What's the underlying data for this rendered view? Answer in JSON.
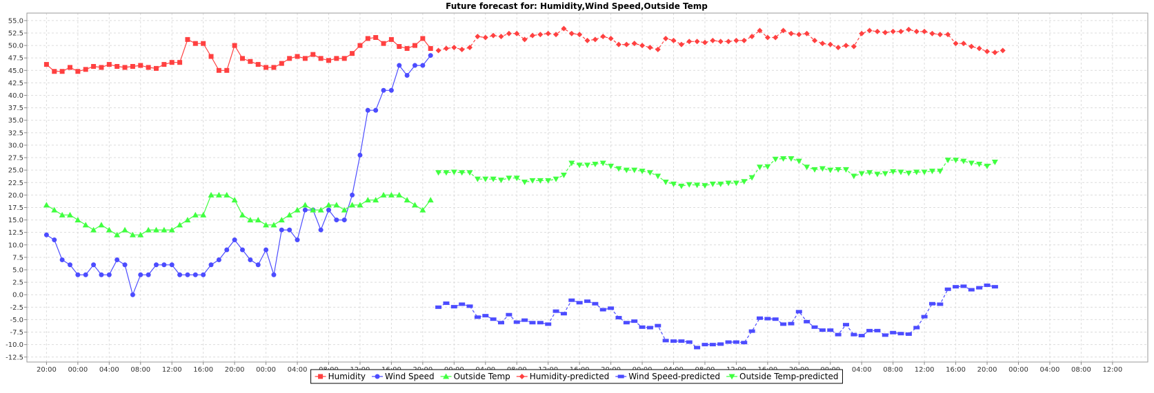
{
  "chart_data": {
    "type": "line",
    "title": "Future forecast for: Humidity,Wind Speed,Outside Temp",
    "xlabel": "",
    "ylabel": "",
    "ylim": [
      -13.5,
      56.5
    ],
    "y_ticks": [
      "55.0",
      "52.5",
      "50.0",
      "47.5",
      "45.0",
      "42.5",
      "40.0",
      "37.5",
      "35.0",
      "32.5",
      "30.0",
      "27.5",
      "25.0",
      "22.5",
      "20.0",
      "17.5",
      "15.0",
      "12.5",
      "10.0",
      "7.5",
      "5.0",
      "2.5",
      "0.0",
      "-2.5",
      "-5.0",
      "-7.5",
      "-10.0",
      "-12.5"
    ],
    "x_ticks": [
      "20:00",
      "00:00",
      "04:00",
      "08:00",
      "12:00",
      "16:00",
      "20:00",
      "00:00",
      "04:00",
      "08:00",
      "12:00",
      "16:00",
      "20:00",
      "00:00",
      "04:00",
      "08:00",
      "12:00",
      "16:00",
      "20:00",
      "00:00",
      "04:00",
      "08:00",
      "12:00",
      "16:00",
      "20:00",
      "00:00",
      "04:00",
      "08:00",
      "12:00",
      "16:00",
      "20:00",
      "00:00",
      "04:00",
      "08:00",
      "12:00"
    ],
    "x_range_hours": [
      -2.5,
      140.5
    ],
    "grid": true,
    "legend_position": "bottom",
    "series": [
      {
        "name": "Humidity",
        "color": "#ff4040",
        "marker": "square",
        "dashed": false,
        "x_start": 0,
        "values": [
          46.2,
          44.8,
          44.8,
          45.6,
          44.8,
          45.2,
          45.8,
          45.6,
          46.2,
          45.8,
          45.6,
          45.8,
          46,
          45.6,
          45.4,
          46.2,
          46.6,
          46.6,
          51.2,
          50.4,
          50.4,
          47.8,
          45,
          45,
          50,
          47.4,
          46.8,
          46.2,
          45.6,
          45.6,
          46.4,
          47.4,
          47.8,
          47.4,
          48.2,
          47.4,
          47,
          47.4,
          47.4,
          48.4,
          50,
          51.4,
          51.6,
          50.4,
          51.2,
          49.8,
          49.4,
          50,
          51.4,
          49.4
        ]
      },
      {
        "name": "Wind Speed",
        "color": "#4c4cff",
        "marker": "circle",
        "dashed": false,
        "x_start": 0,
        "values": [
          12,
          11,
          7,
          6,
          4,
          4,
          6,
          4,
          4,
          7,
          6,
          0,
          4,
          4,
          6,
          6,
          6,
          4,
          4,
          4,
          4,
          6,
          7,
          9,
          11,
          9,
          7,
          6,
          9,
          4,
          13,
          13,
          11,
          17,
          17,
          13,
          17,
          15,
          15,
          20,
          28,
          37,
          37,
          41,
          41,
          46,
          44,
          46,
          46,
          48
        ]
      },
      {
        "name": "Outside Temp",
        "color": "#40ff40",
        "marker": "triangle-up",
        "dashed": false,
        "x_start": 0,
        "values": [
          18,
          17,
          16,
          16,
          15,
          14,
          13,
          14,
          13,
          12,
          13,
          12,
          12,
          13,
          13,
          13,
          13,
          14,
          15,
          16,
          16,
          20,
          20,
          20,
          19,
          16,
          15,
          15,
          14,
          14,
          15,
          16,
          17,
          18,
          17,
          17,
          18,
          18,
          17,
          18,
          18,
          19,
          19,
          20,
          20,
          20,
          19,
          18,
          17,
          19
        ]
      },
      {
        "name": "Humidity-predicted",
        "color": "#ff4040",
        "marker": "diamond",
        "dashed": true,
        "x_start": 50,
        "values": [
          49,
          49.4,
          49.6,
          49.2,
          49.6,
          51.8,
          51.6,
          52,
          51.8,
          52.4,
          52.4,
          51.2,
          52,
          52.2,
          52.4,
          52.2,
          53.4,
          52.4,
          52.2,
          51,
          51.2,
          51.8,
          51.4,
          50.2,
          50.2,
          50.4,
          50,
          49.6,
          49.2,
          51.4,
          51,
          50.2,
          50.8,
          50.8,
          50.6,
          51,
          50.8,
          50.8,
          51,
          51,
          51.8,
          53,
          51.6,
          51.6,
          53,
          52.4,
          52.2,
          52.4,
          51,
          50.4,
          50.2,
          49.6,
          50,
          49.8,
          52.4,
          53,
          52.8,
          52.6,
          52.8,
          52.8,
          53.2,
          52.8,
          52.8,
          52.4,
          52.2,
          52.2,
          50.4,
          50.4,
          49.8,
          49.4,
          48.8,
          48.6,
          49
        ]
      },
      {
        "name": "Wind Speed-predicted",
        "color": "#4c4cff",
        "marker": "rect-h",
        "dashed": true,
        "x_start": 50,
        "values": [
          -2.5,
          -1.7,
          -2.4,
          -1.9,
          -2.3,
          -4.5,
          -4.2,
          -4.9,
          -5.6,
          -4,
          -5.5,
          -5.1,
          -5.6,
          -5.6,
          -5.9,
          -3.3,
          -3.8,
          -1.1,
          -1.6,
          -1.3,
          -1.8,
          -3,
          -2.7,
          -4.6,
          -5.6,
          -5.3,
          -6.5,
          -6.6,
          -6.2,
          -9.2,
          -9.3,
          -9.3,
          -9.5,
          -10.6,
          -10,
          -10,
          -9.9,
          -9.5,
          -9.5,
          -9.6,
          -7.3,
          -4.7,
          -4.8,
          -4.9,
          -5.9,
          -5.8,
          -3.4,
          -5.4,
          -6.5,
          -7.1,
          -7.1,
          -8,
          -6,
          -8,
          -8.2,
          -7.2,
          -7.2,
          -8.1,
          -7.6,
          -7.8,
          -7.9,
          -6.6,
          -4.4,
          -1.8,
          -1.9,
          1.1,
          1.6,
          1.7,
          1,
          1.4,
          1.9,
          1.6
        ]
      },
      {
        "name": "Outside Temp-predicted",
        "color": "#40ff40",
        "marker": "triangle-down",
        "dashed": true,
        "x_start": 50,
        "values": [
          24.5,
          24.5,
          24.6,
          24.5,
          24.5,
          23.2,
          23.2,
          23.2,
          23,
          23.4,
          23.4,
          22.6,
          22.9,
          22.9,
          22.9,
          23.2,
          24,
          26.4,
          26,
          26,
          26.2,
          26.4,
          25.8,
          25.3,
          25,
          25,
          24.8,
          24.5,
          23.8,
          22.6,
          22.2,
          21.8,
          22.1,
          22,
          21.9,
          22.2,
          22.2,
          22.4,
          22.4,
          22.7,
          23.5,
          25.6,
          25.7,
          27.2,
          27.3,
          27.3,
          26.8,
          25.6,
          25.1,
          25.3,
          25,
          25.1,
          25.1,
          23.8,
          24.3,
          24.5,
          24.2,
          24.3,
          24.7,
          24.6,
          24.4,
          24.6,
          24.6,
          24.8,
          24.8,
          27,
          27,
          26.8,
          26.4,
          26.2,
          25.8,
          26.6
        ]
      }
    ]
  }
}
